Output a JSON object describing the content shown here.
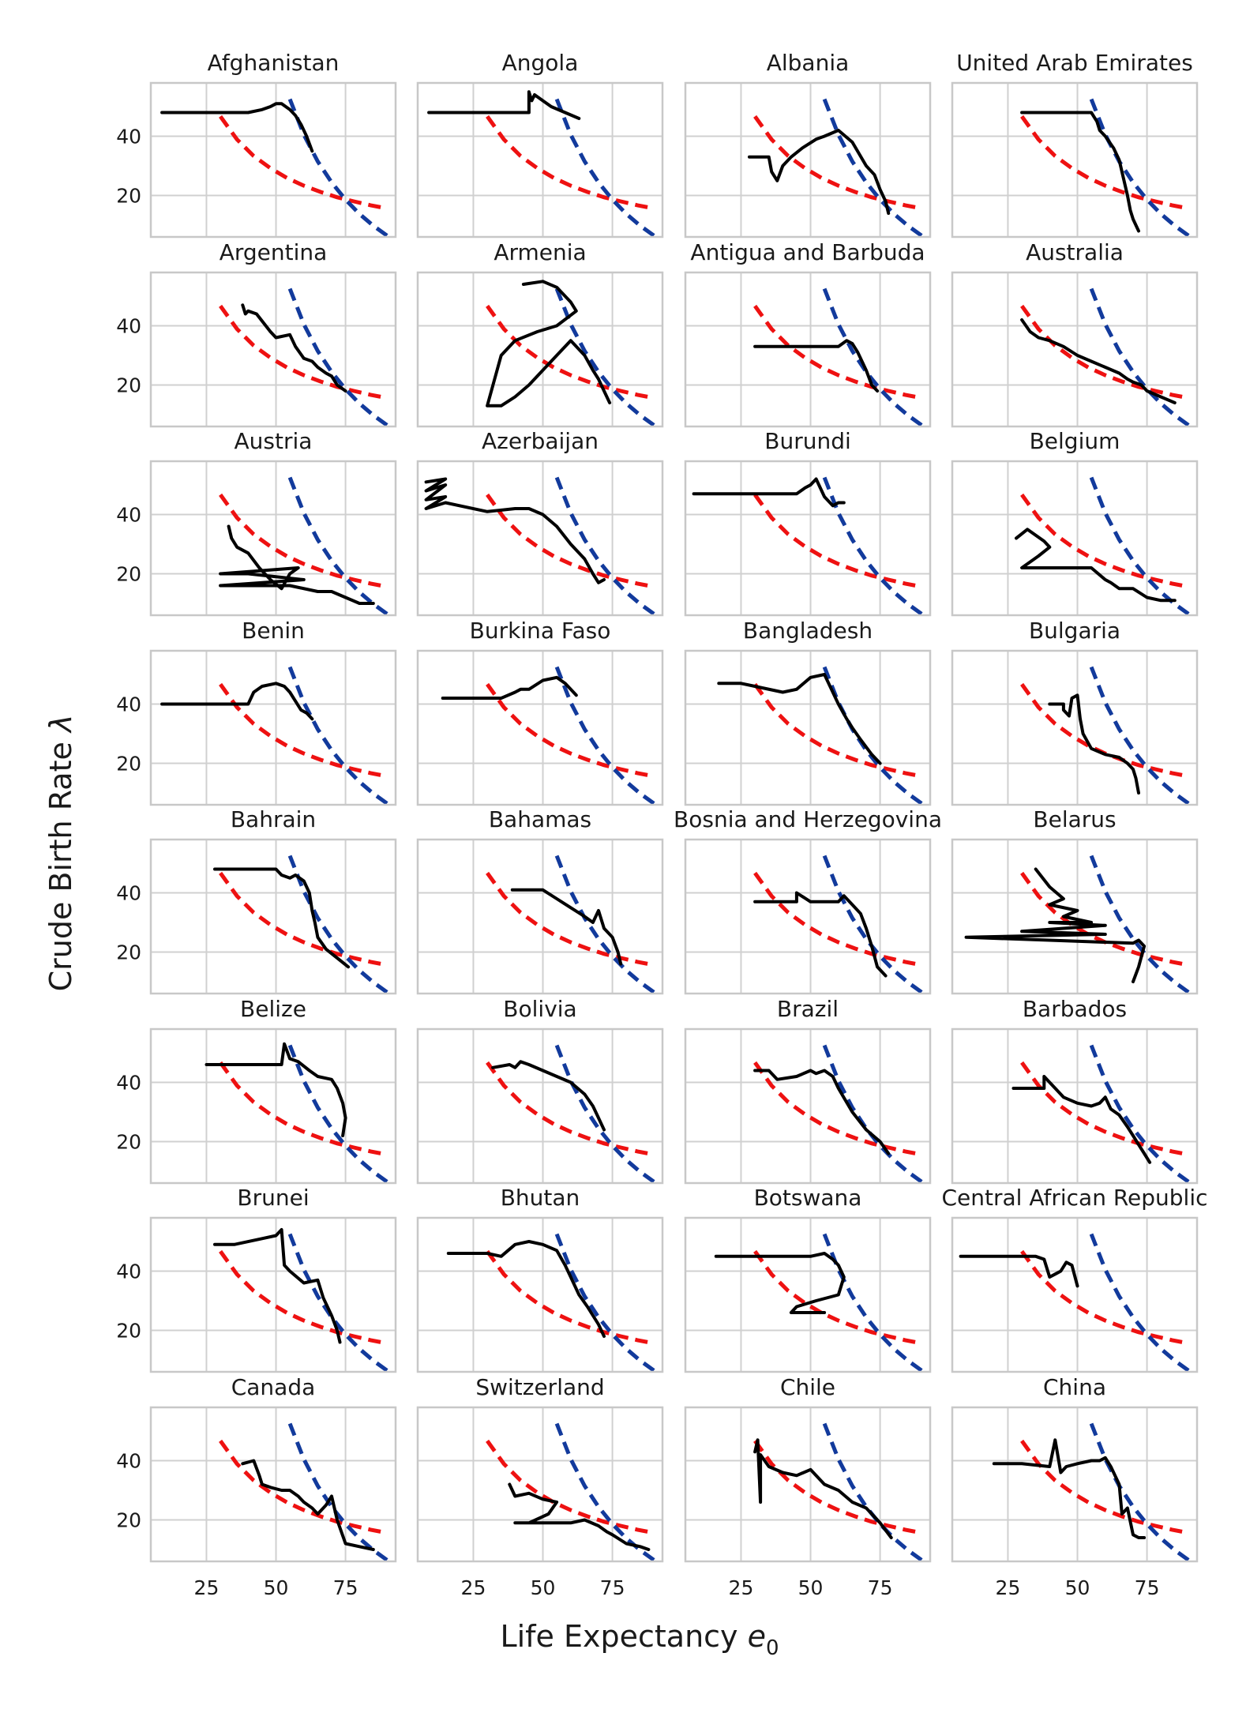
{
  "figure": {
    "xlabel": "Life Expectancy ",
    "xlabel_symbol": "e",
    "xlabel_subscript": "0",
    "ylabel": "Crude Birth Rate ",
    "ylabel_symbol": "λ"
  },
  "chart_data": {
    "type": "line",
    "layout": "small multiples, 8 rows x 4 columns, shared axes",
    "xlim": [
      5,
      93
    ],
    "ylim": [
      6,
      58
    ],
    "xticks": [
      25,
      50,
      75
    ],
    "yticks": [
      20,
      40
    ],
    "xtick_labels": [
      "25",
      "50",
      "75"
    ],
    "ytick_labels": [
      "20",
      "40"
    ],
    "grid": true,
    "reference_curves": [
      {
        "name": "red dashed reference",
        "color": "#ee1111",
        "x": [
          30,
          36,
          42,
          48,
          54,
          60,
          66,
          72,
          78,
          84,
          90
        ],
        "y": [
          46.7,
          38.9,
          33.3,
          29.2,
          25.9,
          23.3,
          21.2,
          19.4,
          18.0,
          16.7,
          15.6
        ]
      },
      {
        "name": "blue dashed reference",
        "color": "#123a9c",
        "x": [
          55,
          60,
          65,
          70,
          75,
          80,
          85,
          90
        ],
        "y": [
          52.5,
          40.5,
          31.5,
          24.4,
          18.6,
          13.8,
          9.8,
          6.4
        ]
      }
    ],
    "panels": [
      {
        "title": "Afghanistan",
        "x": [
          9,
          20,
          30,
          40,
          45,
          48,
          50,
          52,
          55,
          57,
          59,
          61,
          63
        ],
        "y": [
          48,
          48,
          48,
          48,
          49,
          50,
          51,
          51,
          49,
          47,
          44,
          40,
          35
        ]
      },
      {
        "title": "Angola",
        "x": [
          9,
          20,
          30,
          40,
          45,
          45,
          46,
          47,
          50,
          53,
          58,
          63
        ],
        "y": [
          48,
          48,
          48,
          48,
          48,
          55,
          52,
          54,
          52,
          50,
          48,
          46
        ]
      },
      {
        "title": "Albania",
        "x": [
          28,
          35,
          36,
          38,
          40,
          43,
          47,
          52,
          55,
          60,
          65,
          70,
          73,
          75,
          77,
          78
        ],
        "y": [
          33,
          33,
          28,
          25,
          30,
          33,
          36,
          39,
          40,
          42,
          38,
          30,
          27,
          22,
          18,
          14
        ]
      },
      {
        "title": "United Arab Emirates",
        "x": [
          30,
          40,
          50,
          55,
          57,
          58,
          60,
          63,
          65,
          66,
          67,
          68,
          69,
          70,
          71,
          72
        ],
        "y": [
          48,
          48,
          48,
          48,
          45,
          42,
          40,
          36,
          32,
          28,
          24,
          20,
          15,
          12,
          10,
          8
        ]
      },
      {
        "title": "Argentina",
        "x": [
          38,
          39,
          40,
          43,
          48,
          50,
          55,
          57,
          60,
          63,
          65,
          68,
          70,
          72,
          75
        ],
        "y": [
          47,
          44,
          45,
          44,
          38,
          36,
          37,
          33,
          29,
          28,
          26,
          24,
          23,
          20,
          18
        ]
      },
      {
        "title": "Armenia",
        "x": [
          43,
          50,
          55,
          58,
          60,
          62,
          55,
          48,
          40,
          35,
          30,
          35,
          40,
          45,
          50,
          55,
          60,
          65,
          68,
          70,
          72,
          74
        ],
        "y": [
          54,
          55,
          53,
          50,
          48,
          45,
          40,
          38,
          35,
          30,
          13,
          13,
          16,
          20,
          25,
          30,
          35,
          30,
          25,
          22,
          18,
          14
        ]
      },
      {
        "title": "Antigua and Barbuda",
        "x": [
          30,
          40,
          50,
          60,
          63,
          65,
          67,
          70,
          72,
          74
        ],
        "y": [
          33,
          33,
          33,
          33,
          35,
          34,
          31,
          25,
          20,
          18
        ]
      },
      {
        "title": "Australia",
        "x": [
          30,
          33,
          36,
          40,
          45,
          50,
          55,
          60,
          65,
          68,
          70,
          73,
          75,
          80,
          85
        ],
        "y": [
          42,
          38,
          36,
          35,
          33,
          30,
          28,
          26,
          24,
          22,
          21,
          20,
          18,
          16,
          14
        ]
      },
      {
        "title": "Austria",
        "x": [
          33,
          34,
          36,
          40,
          44,
          48,
          52,
          55,
          58,
          30,
          40,
          50,
          60,
          30,
          55,
          65,
          70,
          75,
          80,
          85
        ],
        "y": [
          36,
          32,
          29,
          27,
          22,
          18,
          15,
          20,
          22,
          20,
          20,
          19,
          18,
          16,
          16,
          14,
          14,
          12,
          10,
          10
        ]
      },
      {
        "title": "Azerbaijan",
        "x": [
          8,
          15,
          8,
          15,
          8,
          15,
          8,
          15,
          30,
          40,
          45,
          50,
          55,
          60,
          65,
          68,
          70,
          72
        ],
        "y": [
          51,
          52,
          48,
          50,
          45,
          46,
          42,
          44,
          41,
          42,
          42,
          40,
          36,
          30,
          25,
          20,
          17,
          18
        ]
      },
      {
        "title": "Burundi",
        "x": [
          8,
          20,
          30,
          40,
          45,
          48,
          50,
          52,
          55,
          58,
          60,
          62
        ],
        "y": [
          47,
          47,
          47,
          47,
          47,
          49,
          50,
          52,
          46,
          43,
          44,
          44
        ]
      },
      {
        "title": "Belgium",
        "x": [
          28,
          32,
          35,
          38,
          40,
          36,
          30,
          45,
          55,
          60,
          62,
          65,
          70,
          75,
          80,
          85
        ],
        "y": [
          32,
          35,
          33,
          31,
          29,
          26,
          22,
          22,
          22,
          18,
          17,
          15,
          15,
          12,
          11,
          11
        ]
      },
      {
        "title": "Benin",
        "x": [
          9,
          20,
          30,
          35,
          40,
          42,
          45,
          50,
          53,
          55,
          57,
          59,
          61,
          63
        ],
        "y": [
          40,
          40,
          40,
          40,
          40,
          44,
          46,
          47,
          46,
          44,
          41,
          38,
          37,
          35
        ]
      },
      {
        "title": "Burkina Faso",
        "x": [
          14,
          25,
          35,
          40,
          42,
          45,
          50,
          55,
          58,
          60,
          62
        ],
        "y": [
          42,
          42,
          42,
          44,
          45,
          45,
          48,
          49,
          47,
          45,
          43
        ]
      },
      {
        "title": "Bangladesh",
        "x": [
          17,
          25,
          30,
          40,
          45,
          50,
          55,
          57,
          60,
          63,
          65,
          68,
          72,
          75
        ],
        "y": [
          47,
          47,
          46,
          44,
          45,
          49,
          50,
          46,
          40,
          35,
          32,
          28,
          23,
          20
        ]
      },
      {
        "title": "Bulgaria",
        "x": [
          40,
          45,
          45,
          47,
          48,
          50,
          51,
          52,
          55,
          60,
          65,
          68,
          70,
          71,
          72
        ],
        "y": [
          40,
          40,
          38,
          36,
          42,
          43,
          35,
          30,
          25,
          23,
          22,
          20,
          18,
          15,
          10
        ]
      },
      {
        "title": "Bahrain",
        "x": [
          28,
          35,
          40,
          50,
          52,
          55,
          57,
          60,
          62,
          63,
          64,
          65,
          68,
          72,
          76
        ],
        "y": [
          48,
          48,
          48,
          48,
          46,
          45,
          46,
          44,
          40,
          34,
          30,
          25,
          21,
          18,
          15
        ]
      },
      {
        "title": "Bahamas",
        "x": [
          39,
          45,
          50,
          55,
          60,
          65,
          68,
          70,
          72,
          74,
          75,
          77,
          78
        ],
        "y": [
          41,
          41,
          41,
          38,
          35,
          32,
          30,
          34,
          28,
          26,
          25,
          20,
          16
        ]
      },
      {
        "title": "Bosnia and Herzegovina",
        "x": [
          30,
          40,
          45,
          45,
          50,
          55,
          60,
          62,
          65,
          68,
          70,
          72,
          74,
          77
        ],
        "y": [
          37,
          37,
          37,
          40,
          37,
          37,
          37,
          39,
          36,
          33,
          28,
          22,
          15,
          12
        ]
      },
      {
        "title": "Belarus",
        "x": [
          35,
          40,
          45,
          40,
          50,
          45,
          55,
          40,
          60,
          30,
          60,
          10,
          40,
          70,
          72,
          74,
          72,
          70
        ],
        "y": [
          48,
          42,
          38,
          36,
          34,
          32,
          30,
          30,
          29,
          27,
          26,
          25,
          24,
          23,
          24,
          22,
          15,
          10
        ]
      },
      {
        "title": "Belize",
        "x": [
          25,
          35,
          45,
          52,
          53,
          55,
          58,
          62,
          65,
          70,
          72,
          74,
          75,
          74
        ],
        "y": [
          46,
          46,
          46,
          46,
          53,
          48,
          47,
          44,
          42,
          41,
          38,
          33,
          28,
          22
        ]
      },
      {
        "title": "Bolivia",
        "x": [
          32,
          38,
          40,
          42,
          45,
          50,
          55,
          60,
          65,
          68,
          70,
          72
        ],
        "y": [
          45,
          46,
          45,
          47,
          46,
          44,
          42,
          40,
          36,
          32,
          28,
          24
        ]
      },
      {
        "title": "Brazil",
        "x": [
          30,
          35,
          38,
          45,
          50,
          52,
          55,
          58,
          60,
          65,
          70,
          75,
          78
        ],
        "y": [
          44,
          44,
          41,
          42,
          44,
          43,
          44,
          42,
          38,
          30,
          24,
          20,
          16
        ]
      },
      {
        "title": "Barbados",
        "x": [
          27,
          35,
          38,
          38,
          45,
          50,
          55,
          58,
          60,
          62,
          65,
          68,
          70,
          72,
          74,
          76
        ],
        "y": [
          38,
          38,
          38,
          42,
          35,
          33,
          32,
          33,
          35,
          31,
          29,
          25,
          22,
          19,
          16,
          13
        ]
      },
      {
        "title": "Brunei",
        "x": [
          28,
          35,
          45,
          50,
          52,
          53,
          55,
          60,
          65,
          67,
          70,
          72,
          73
        ],
        "y": [
          49,
          49,
          51,
          52,
          54,
          42,
          40,
          36,
          37,
          31,
          25,
          20,
          16
        ]
      },
      {
        "title": "Bhutan",
        "x": [
          16,
          25,
          30,
          35,
          40,
          45,
          50,
          55,
          58,
          60,
          63,
          66,
          70,
          72
        ],
        "y": [
          46,
          46,
          46,
          45,
          49,
          50,
          49,
          47,
          42,
          38,
          32,
          28,
          22,
          18
        ]
      },
      {
        "title": "Botswana",
        "x": [
          16,
          30,
          40,
          50,
          55,
          58,
          60,
          62,
          60,
          52,
          45,
          43,
          48,
          55
        ],
        "y": [
          45,
          45,
          45,
          45,
          46,
          44,
          42,
          38,
          32,
          30,
          28,
          26,
          26,
          26
        ]
      },
      {
        "title": "Central African Republic",
        "x": [
          8,
          20,
          30,
          35,
          38,
          40,
          42,
          44,
          46,
          48,
          50
        ],
        "y": [
          45,
          45,
          45,
          45,
          44,
          38,
          39,
          40,
          43,
          42,
          35
        ]
      },
      {
        "title": "Canada",
        "x": [
          38,
          42,
          44,
          45,
          48,
          52,
          55,
          58,
          60,
          63,
          65,
          68,
          70,
          72,
          75,
          80,
          85
        ],
        "y": [
          39,
          40,
          35,
          32,
          31,
          30,
          30,
          28,
          26,
          24,
          22,
          25,
          28,
          20,
          12,
          11,
          10
        ]
      },
      {
        "title": "Switzerland",
        "x": [
          38,
          40,
          45,
          50,
          55,
          52,
          45,
          40,
          60,
          65,
          70,
          73,
          75,
          80,
          85,
          88
        ],
        "y": [
          32,
          28,
          29,
          27,
          26,
          22,
          19,
          19,
          19,
          20,
          18,
          16,
          15,
          12,
          11,
          10
        ]
      },
      {
        "title": "Chile",
        "x": [
          30,
          31,
          32,
          32,
          35,
          40,
          45,
          50,
          55,
          60,
          65,
          70,
          75,
          79
        ],
        "y": [
          43,
          47,
          26,
          42,
          38,
          36,
          35,
          37,
          32,
          30,
          26,
          24,
          19,
          14
        ]
      },
      {
        "title": "China",
        "x": [
          20,
          30,
          40,
          42,
          44,
          46,
          50,
          55,
          58,
          60,
          62,
          65,
          66,
          68,
          70,
          72,
          74
        ],
        "y": [
          39,
          39,
          38,
          47,
          36,
          38,
          39,
          40,
          40,
          41,
          38,
          32,
          22,
          24,
          15,
          14,
          14
        ]
      }
    ]
  }
}
